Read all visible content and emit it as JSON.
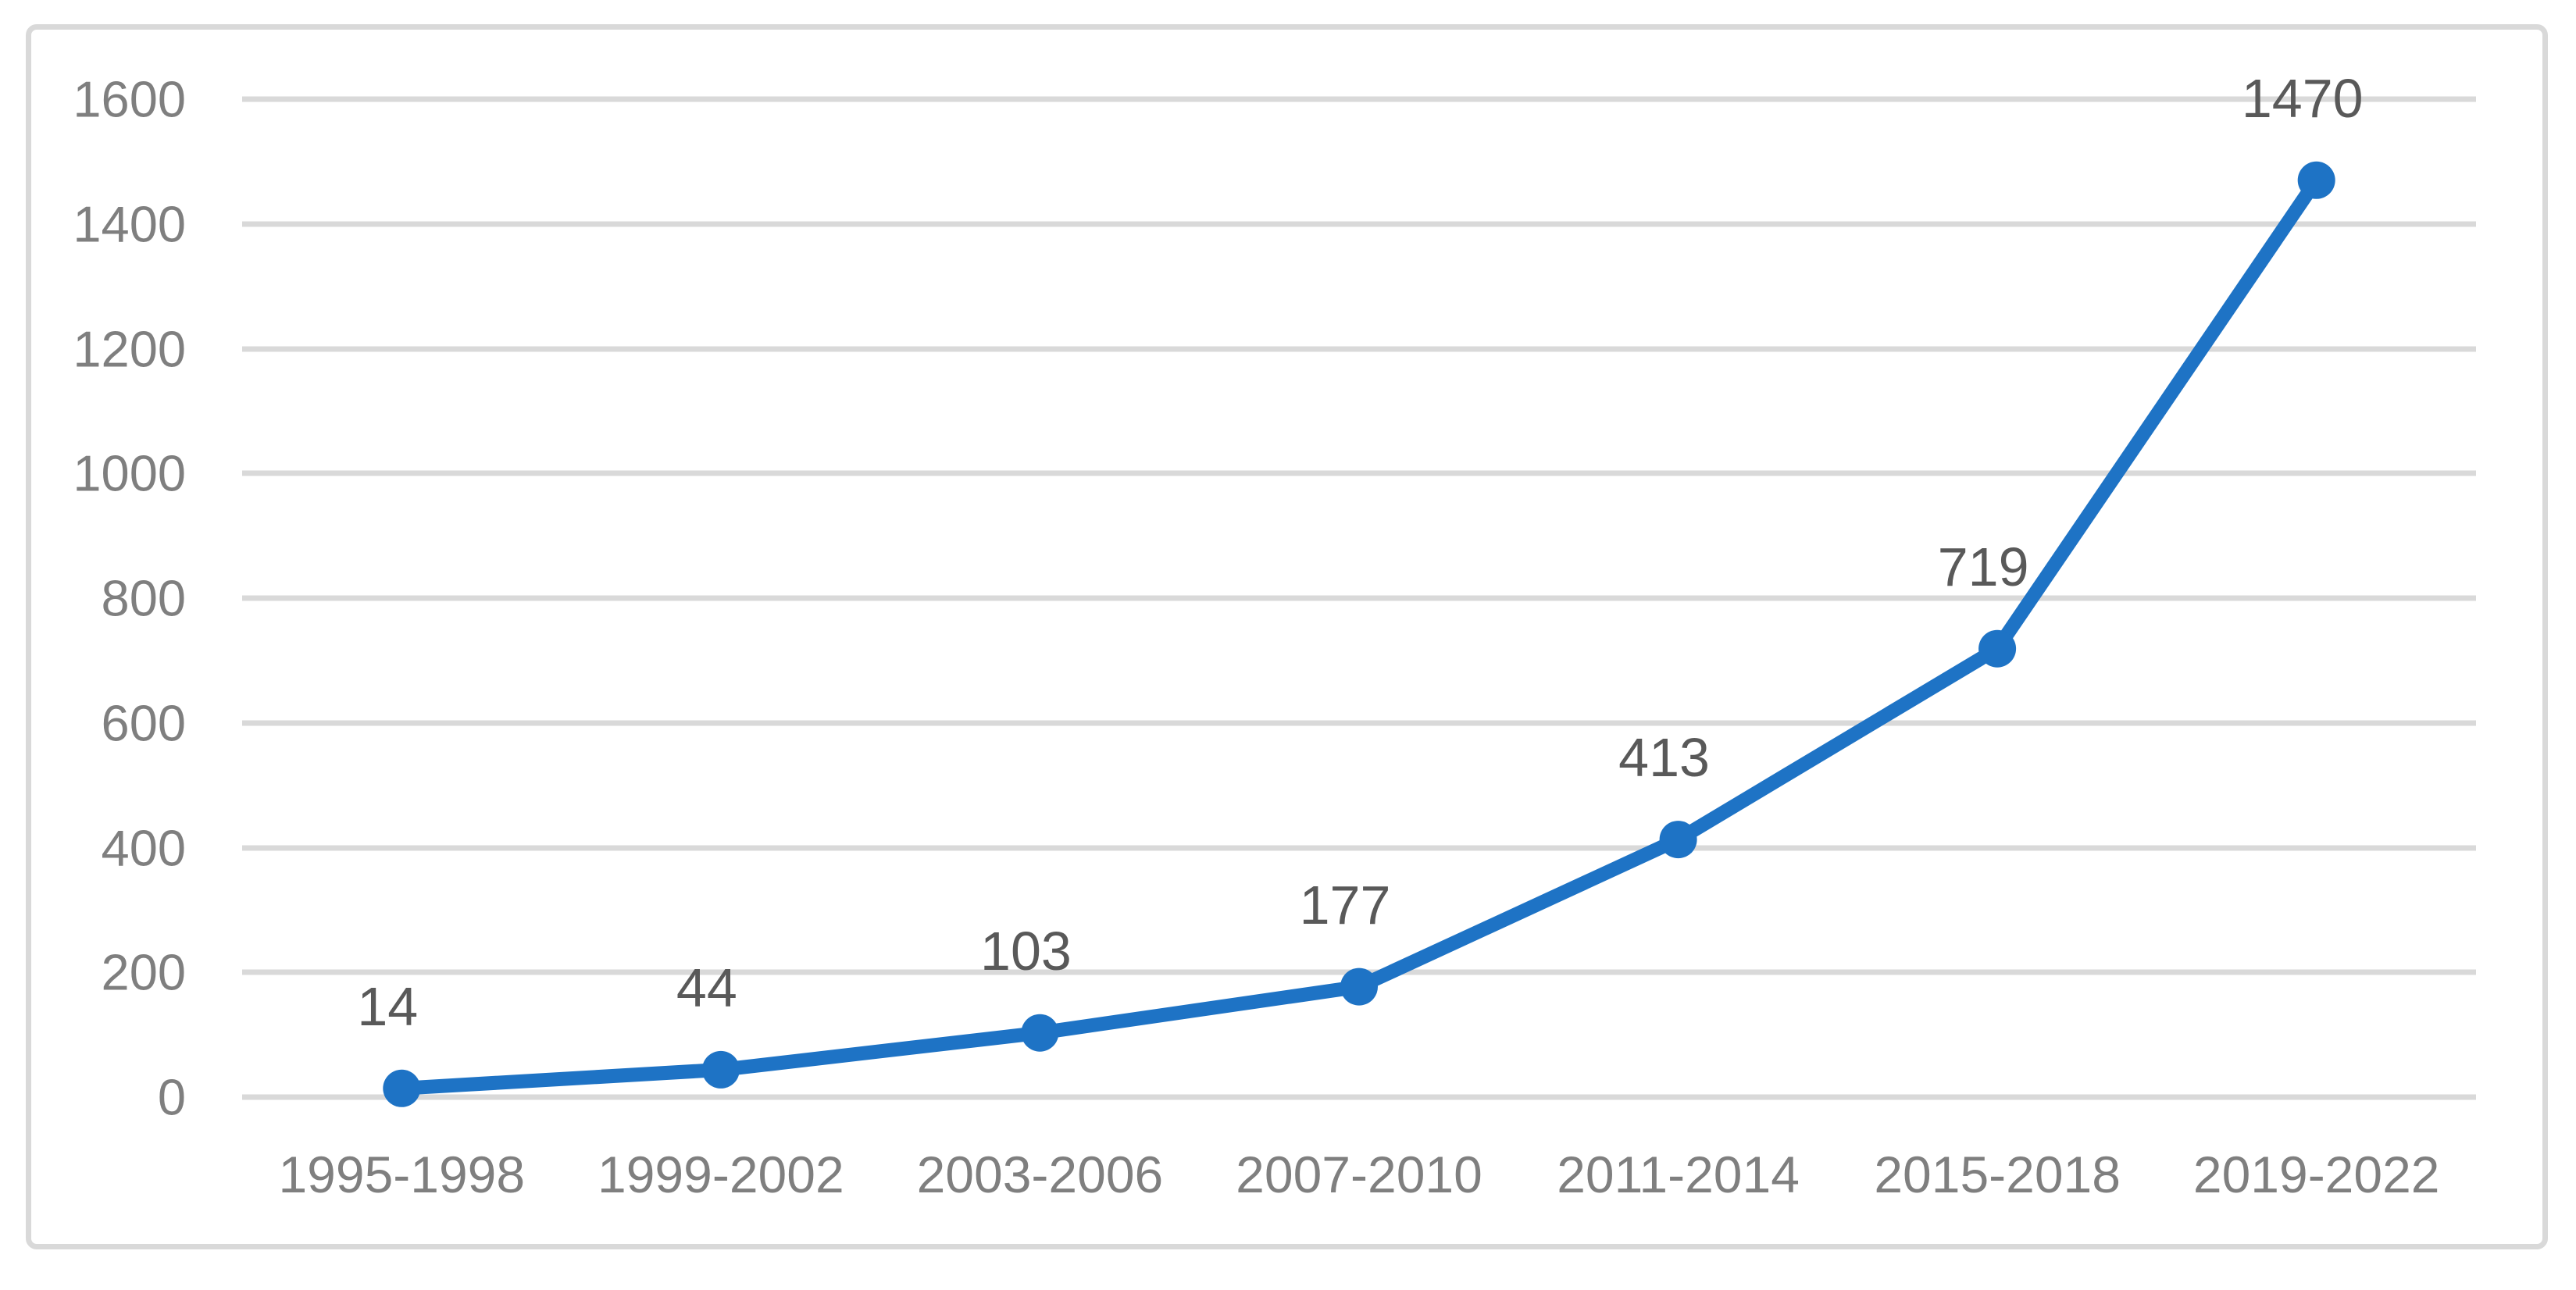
{
  "chart_data": {
    "type": "line",
    "title": "",
    "xlabel": "",
    "ylabel": "",
    "categories": [
      "1995-1998",
      "1999-2002",
      "2003-2006",
      "2007-2010",
      "2011-2014",
      "2015-2018",
      "2019-2022"
    ],
    "values": [
      14,
      44,
      103,
      177,
      413,
      719,
      1470
    ],
    "y_ticks": [
      0,
      200,
      400,
      600,
      800,
      1000,
      1200,
      1400,
      1600
    ],
    "ylim": [
      0,
      1600
    ],
    "grid": true,
    "legend_position": "none",
    "data_labels_position": "above",
    "colors": {
      "line": "#1E73C5",
      "marker": "#1E73C5",
      "gridline": "#D9D9D9",
      "frame_border": "#D9D9D9",
      "axis_labels": "#7F7F7F",
      "data_labels": "#595959",
      "background": "#FFFFFF"
    },
    "marker": "circle"
  }
}
